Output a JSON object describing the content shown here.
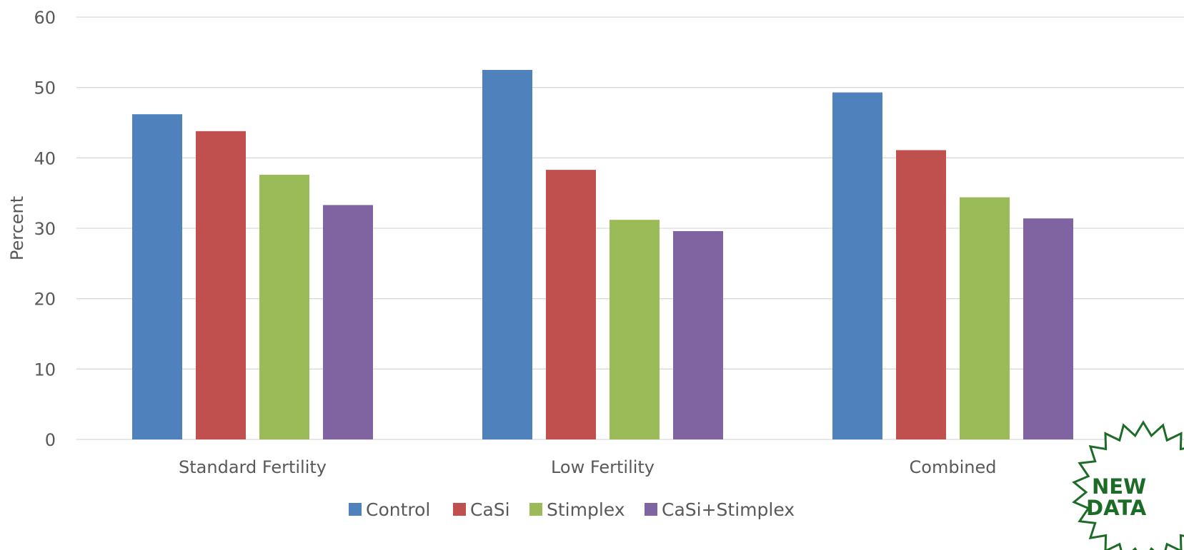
{
  "chart_data": {
    "type": "bar",
    "categories": [
      "Standard Fertility",
      "Low Fertility",
      "Combined"
    ],
    "series": [
      {
        "name": "Control",
        "color": "#4f81bd",
        "values": [
          46.2,
          52.5,
          49.3
        ]
      },
      {
        "name": "CaSi",
        "color": "#c0504d",
        "values": [
          43.8,
          38.3,
          41.1
        ]
      },
      {
        "name": "Stimplex",
        "color": "#9bbb59",
        "values": [
          37.6,
          31.2,
          34.4
        ]
      },
      {
        "name": "CaSi+Stimplex",
        "color": "#8064a2",
        "values": [
          33.3,
          29.6,
          31.4
        ]
      }
    ],
    "ylabel": "Percent",
    "xlabel": "",
    "ylim": [
      0,
      60
    ],
    "yticks": [
      0,
      10,
      20,
      30,
      40,
      50,
      60
    ],
    "grid": true,
    "legend_position": "bottom"
  },
  "badge": {
    "line1": "NEW",
    "line2": "DATA",
    "color": "#1c6b27"
  }
}
